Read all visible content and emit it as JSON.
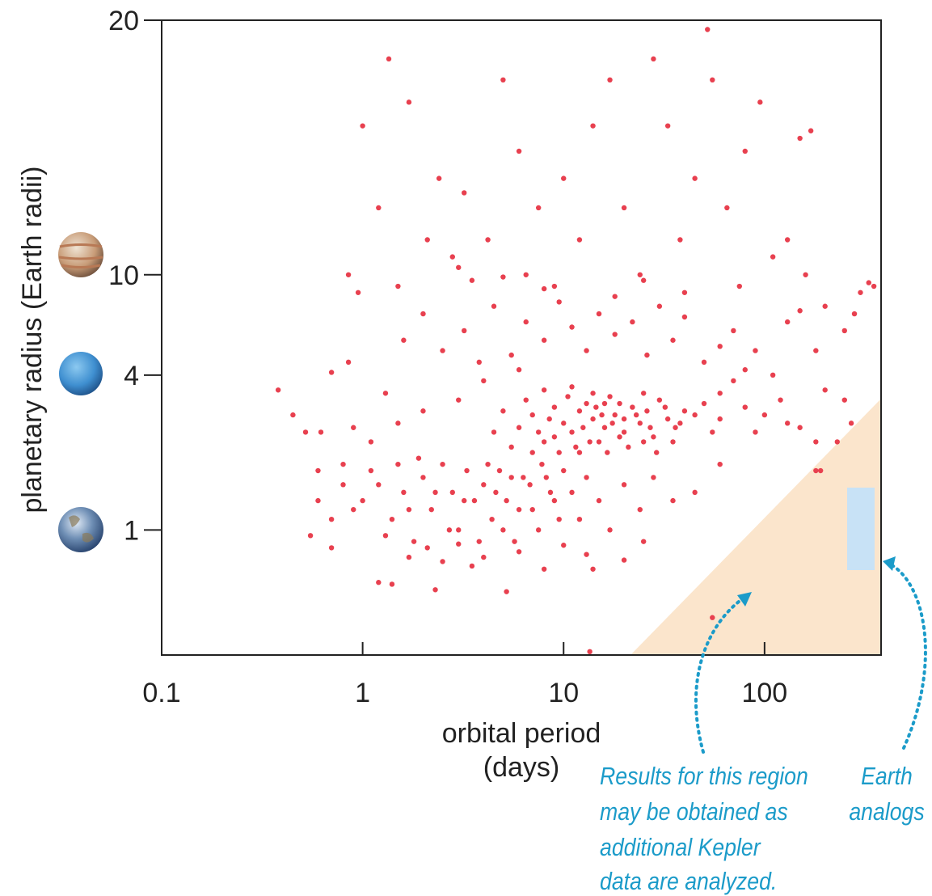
{
  "chart_data": {
    "type": "scatter",
    "xlabel": [
      "orbital period",
      "(days)"
    ],
    "ylabel": "planetary radius (Earth radii)",
    "xscale": "log",
    "yscale": "log",
    "xlim": [
      0.1,
      380
    ],
    "ylim": [
      0.32,
      20
    ],
    "xticks": [
      0.1,
      1,
      10,
      100
    ],
    "yticks": [
      1,
      4,
      10,
      20
    ],
    "color": "#e8404f",
    "x": [
      6,
      7,
      8,
      9,
      10,
      11,
      12,
      13,
      14,
      15,
      16,
      17,
      18,
      20,
      22,
      24,
      26,
      28,
      30,
      33,
      36,
      40,
      5.5,
      6.5,
      7.5,
      8.5,
      9.5,
      10.5,
      11.5,
      12.5,
      13.5,
      14.5,
      15.5,
      16.5,
      17.5,
      19,
      21,
      23,
      25,
      27,
      29,
      32,
      35,
      38,
      45,
      50,
      55,
      60,
      5,
      4.5,
      8,
      11,
      14,
      19,
      9,
      12,
      16,
      7,
      20,
      25,
      1,
      1.2,
      1.4,
      1.6,
      1.8,
      2,
      2.2,
      2.5,
      2.8,
      3,
      3.3,
      3.6,
      4,
      4.4,
      4.8,
      5.2,
      5.7,
      6.3,
      7,
      7.8,
      8.6,
      9.5,
      0.6,
      0.7,
      0.8,
      0.9,
      0.55,
      0.6,
      0.7,
      1.1,
      1.3,
      1.5,
      1.7,
      1.9,
      2.1,
      2.3,
      2.7,
      3.2,
      3.8,
      4.2,
      4.6,
      5,
      5.5,
      6,
      6.8,
      7.5,
      8.2,
      9,
      10,
      11,
      12,
      13,
      15,
      17,
      20,
      24,
      28,
      35,
      45,
      60,
      1.2,
      1.4,
      2.3,
      5.2,
      2.5,
      3.5,
      4,
      8,
      13,
      20,
      6,
      3,
      10,
      14,
      1.7,
      25,
      55,
      13.5,
      270,
      180,
      190,
      230,
      0.38,
      0.45,
      0.52,
      0.62,
      0.7,
      0.85,
      0.9,
      1.3,
      1.6,
      2,
      2.5,
      3.2,
      3.8,
      4.5,
      5.5,
      6.5,
      8,
      9.5,
      11,
      13,
      15,
      18,
      22,
      26,
      30,
      35,
      40,
      50,
      60,
      70,
      80,
      90,
      110,
      130,
      150,
      180,
      200,
      250,
      300,
      350,
      330,
      280,
      120,
      100,
      80,
      150,
      200,
      250,
      180,
      130,
      70,
      90,
      60,
      4,
      3,
      2,
      1.5,
      1.1,
      0.8,
      6,
      0.85,
      0.95,
      1,
      1.2,
      1.35,
      1.5,
      1.7,
      2.1,
      2.4,
      2.8,
      3.2,
      3.5,
      4.2,
      5,
      6,
      6.5,
      7.5,
      9,
      10,
      12,
      14,
      17,
      20,
      24,
      28,
      33,
      38,
      45,
      52,
      55,
      65,
      80,
      95,
      110,
      130,
      150,
      170,
      160,
      75,
      40,
      25,
      18,
      8,
      5,
      3
    ],
    "values": [
      2.5,
      2.8,
      2.2,
      3.0,
      2.6,
      2.4,
      2.9,
      3.1,
      2.7,
      2.2,
      2.5,
      3.3,
      2.8,
      2.4,
      3.0,
      2.6,
      2.9,
      2.3,
      3.2,
      2.7,
      2.5,
      2.9,
      2.1,
      3.2,
      2.4,
      2.7,
      2.0,
      3.3,
      2.1,
      2.5,
      2.2,
      3.0,
      2.8,
      2.0,
      2.6,
      3.1,
      2.1,
      2.8,
      3.4,
      2.5,
      2.0,
      3.0,
      2.2,
      2.6,
      2.8,
      3.1,
      2.4,
      2.7,
      2.9,
      2.4,
      3.5,
      3.6,
      3.4,
      2.3,
      2.3,
      2.0,
      3.1,
      2.0,
      2.7,
      2.2,
      1.3,
      1.5,
      1.1,
      1.4,
      0.9,
      1.6,
      1.2,
      1.8,
      1.4,
      1.0,
      1.7,
      1.3,
      1.5,
      1.1,
      1.7,
      1.3,
      0.9,
      1.6,
      1.2,
      1.8,
      1.4,
      1.1,
      1.3,
      1.1,
      1.5,
      1.2,
      0.95,
      1.7,
      0.85,
      1.7,
      0.95,
      1.8,
      1.2,
      1.9,
      0.85,
      1.4,
      1.0,
      1.3,
      0.9,
      1.8,
      1.4,
      1.0,
      1.6,
      1.2,
      1.5,
      1.0,
      1.6,
      1.3,
      1.7,
      1.4,
      1.1,
      1.6,
      1.3,
      1.0,
      1.5,
      1.2,
      1.6,
      1.3,
      1.4,
      1.8,
      0.62,
      0.61,
      0.58,
      0.57,
      0.75,
      0.72,
      0.78,
      0.7,
      0.8,
      0.76,
      0.82,
      0.88,
      0.87,
      0.7,
      0.78,
      0.9,
      0.45,
      0.33,
      2.6,
      1.7,
      1.7,
      2.2,
      3.5,
      2.8,
      2.4,
      2.4,
      4.1,
      4.5,
      2.5,
      3.4,
      5.5,
      7,
      5,
      6,
      4.5,
      7.5,
      4.8,
      6.5,
      5.5,
      7.8,
      6.2,
      5,
      7,
      5.8,
      6.5,
      4.8,
      7.5,
      5.5,
      6.8,
      4.5,
      5.2,
      6.0,
      4.2,
      5.0,
      4.0,
      6.5,
      7.2,
      5.0,
      7.5,
      6.0,
      8.5,
      9.0,
      9.3,
      7.0,
      3.2,
      2.8,
      3.0,
      2.5,
      3.5,
      3.2,
      2.2,
      2.6,
      3.8,
      2.4,
      3.4,
      3.8,
      3.2,
      2.9,
      2.6,
      2.2,
      1.8,
      4.2,
      10,
      8.5,
      15,
      12,
      18,
      9,
      16,
      11,
      13,
      10.5,
      12.5,
      9.5,
      11,
      17,
      14,
      10,
      12,
      9,
      13,
      11,
      15,
      17,
      12,
      10,
      18,
      15,
      11,
      13,
      19.5,
      17,
      12,
      14,
      16,
      10.5,
      11,
      14.5,
      14.8,
      10,
      9,
      8.5,
      9.5,
      8.2,
      8.8,
      9.8,
      10.2
    ],
    "annotations": [
      {
        "lines": [
          "Results for this region",
          "may be obtained as",
          "additional Kepler",
          "data are analyzed."
        ]
      },
      {
        "lines": [
          "Earth",
          "analogs"
        ]
      }
    ]
  }
}
